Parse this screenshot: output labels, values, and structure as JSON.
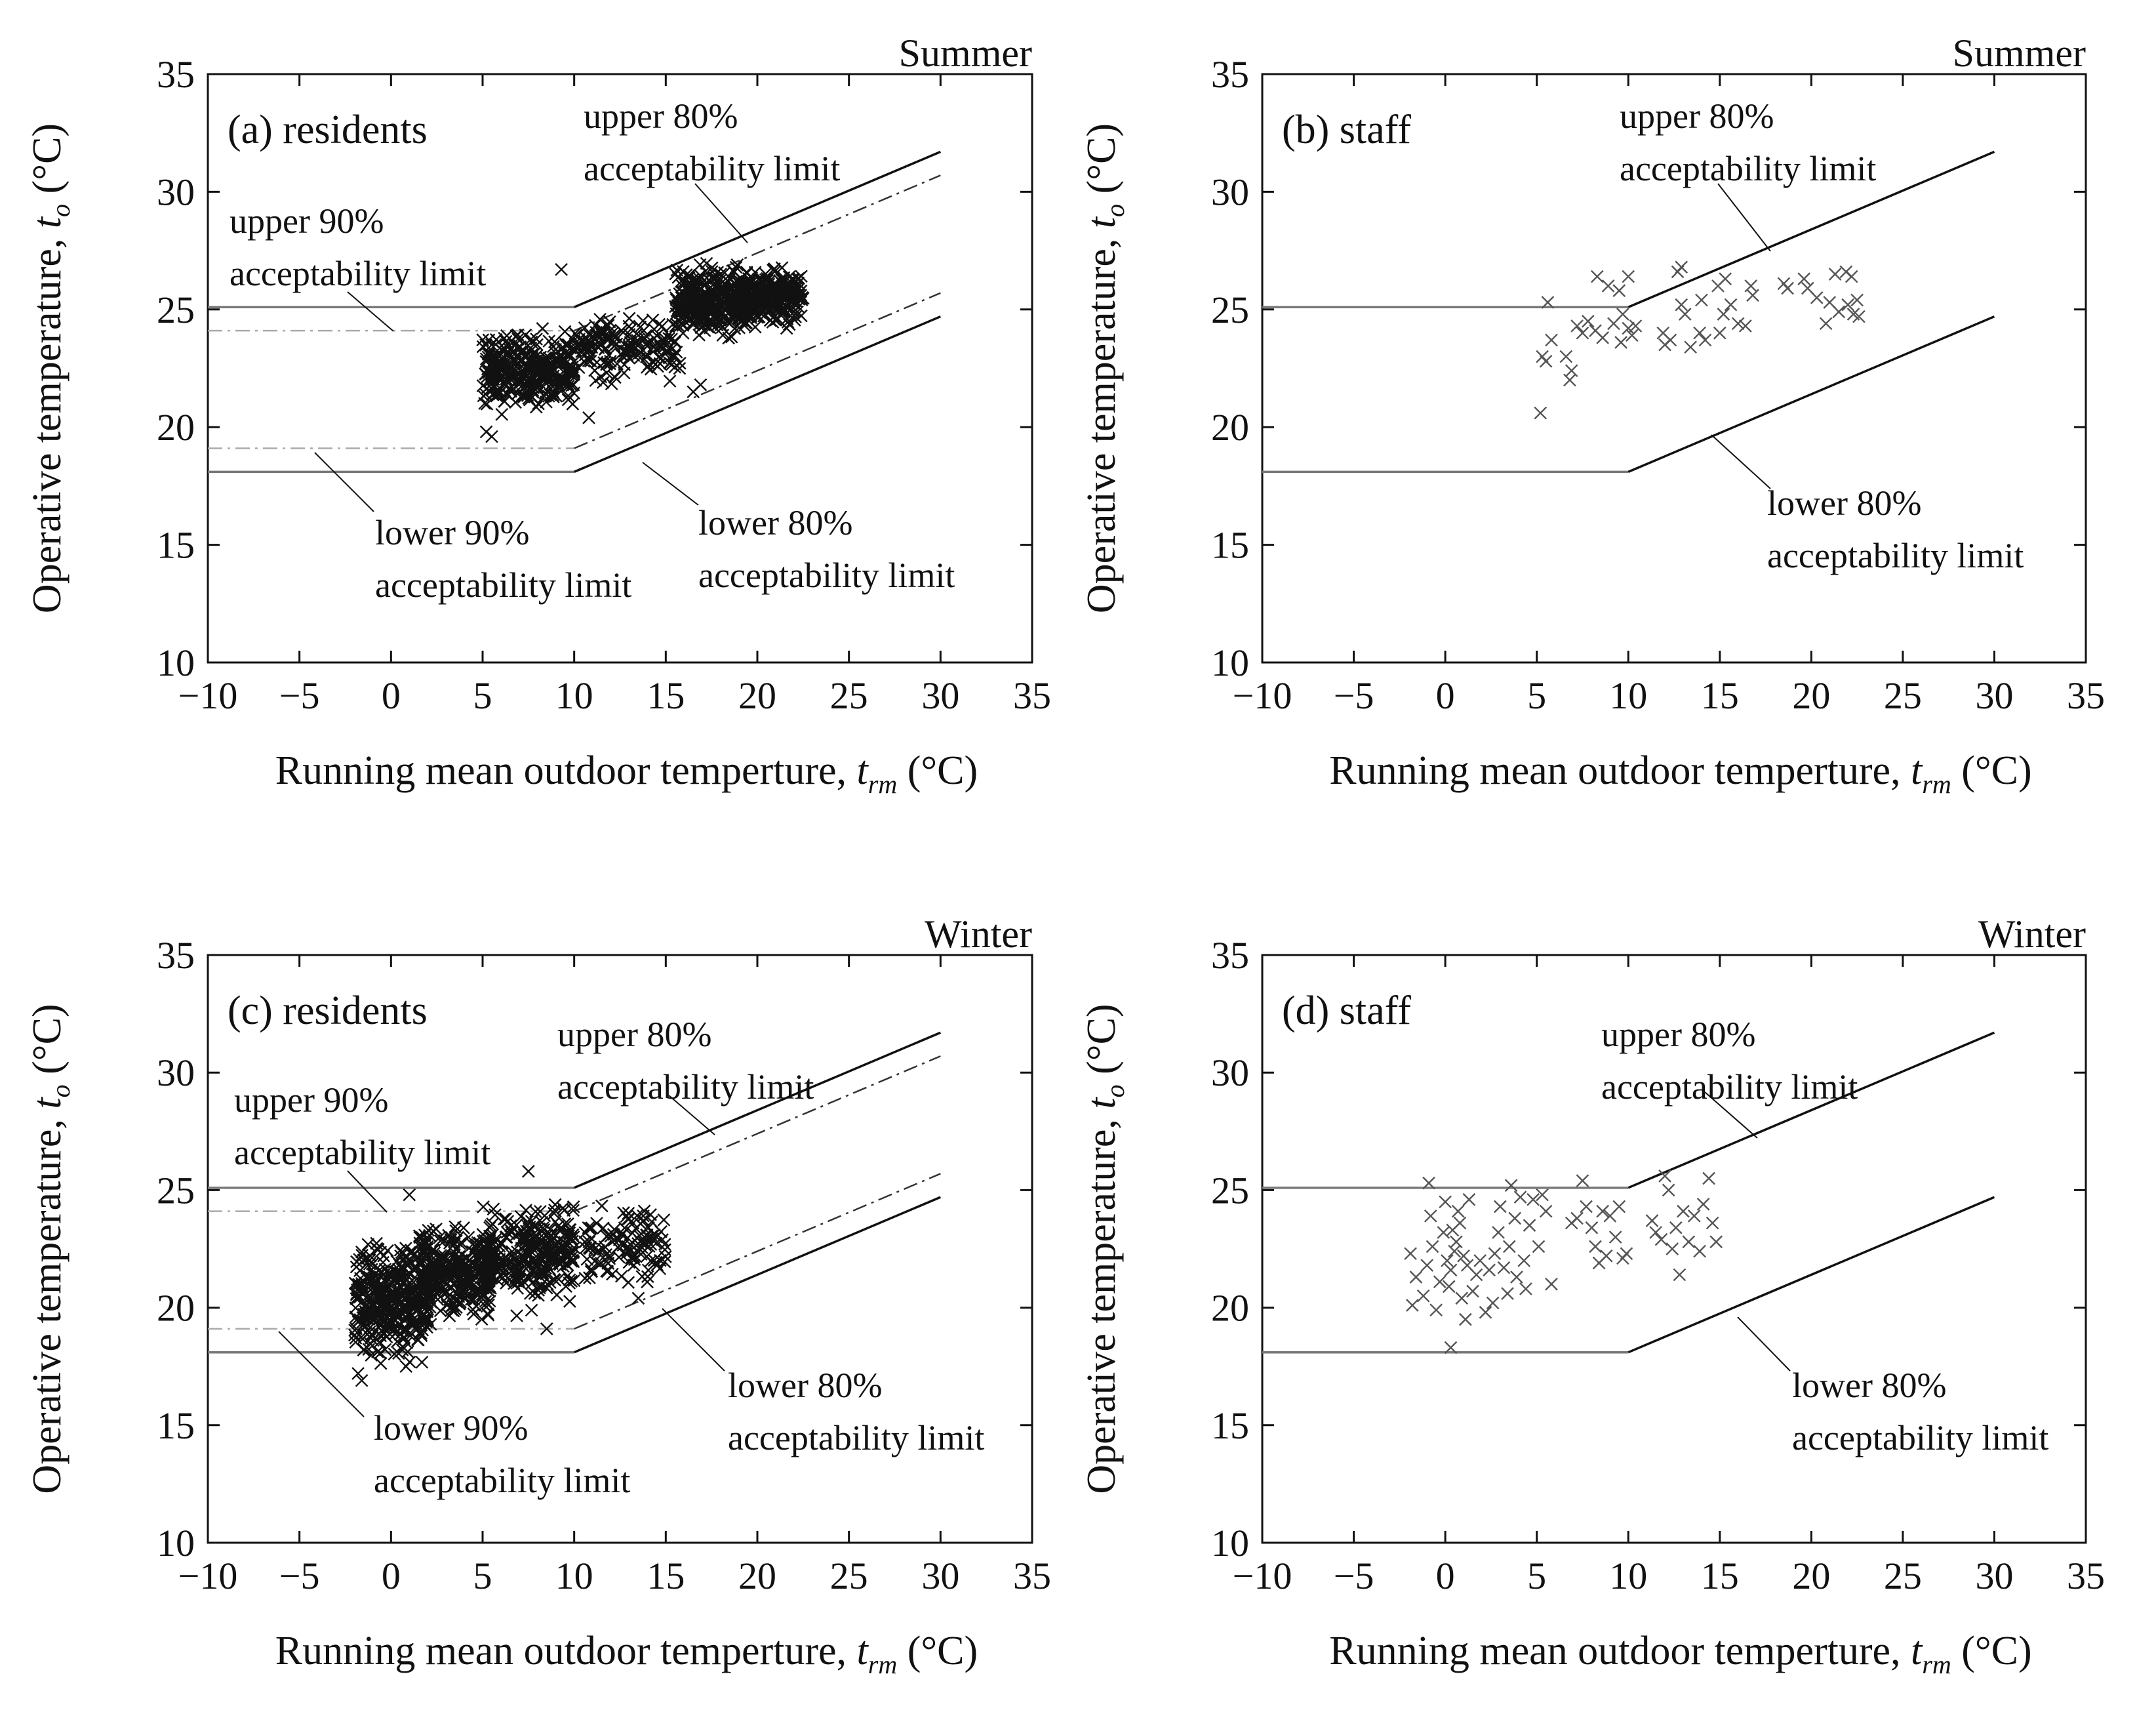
{
  "figure": {
    "tick_minus_sign": "−",
    "degree_unit": "(°C)"
  },
  "chart_data": [
    {
      "id": "a",
      "type": "scatter",
      "panel_label": "(a) residents",
      "season": "Summer",
      "xlabel": "Running mean outdoor temperture, t_rm (°C)",
      "xlabel_main": "Running mean outdoor temperture, ",
      "xlabel_symbol": "t",
      "xlabel_sub": "rm",
      "ylabel": "Operative temperature, t_o (°C)",
      "ylabel_main": "Operative temperature, ",
      "ylabel_symbol": "t",
      "ylabel_sub": "o",
      "xlim": [
        -10,
        35
      ],
      "ylim": [
        10,
        35
      ],
      "xticks": [
        -10,
        -5,
        0,
        5,
        10,
        15,
        20,
        25,
        30,
        35
      ],
      "yticks": [
        10,
        15,
        20,
        25,
        30,
        35
      ],
      "limits": {
        "upper80": [
          [
            -10,
            25.1
          ],
          [
            10,
            25.1
          ],
          [
            30,
            31.7
          ]
        ],
        "lower80": [
          [
            -10,
            18.1
          ],
          [
            10,
            18.1
          ],
          [
            30,
            24.7
          ]
        ],
        "upper90": [
          [
            -10,
            24.1
          ],
          [
            10,
            24.1
          ],
          [
            30,
            30.7
          ]
        ],
        "lower90": [
          [
            -10,
            19.1
          ],
          [
            10,
            19.1
          ],
          [
            30,
            25.7
          ]
        ]
      },
      "show_90": true,
      "annotations": [
        {
          "lines": [
            "upper 80%",
            "acceptability limit"
          ]
        },
        {
          "lines": [
            "upper 90%",
            "acceptability limit"
          ]
        },
        {
          "lines": [
            "lower 90%",
            "acceptability limit"
          ]
        },
        {
          "lines": [
            "lower 80%",
            "acceptability limit"
          ]
        }
      ],
      "clusters": [
        {
          "x": [
            5,
            10
          ],
          "y": [
            20.3,
            24.6
          ],
          "n": 340
        },
        {
          "x": [
            10,
            16
          ],
          "y": [
            21.5,
            25.3
          ],
          "n": 170
        },
        {
          "x": [
            15.5,
            19.5
          ],
          "y": [
            23.5,
            27.2
          ],
          "n": 340
        },
        {
          "x": [
            19,
            22.5
          ],
          "y": [
            24.0,
            27.1
          ],
          "n": 260
        }
      ],
      "points": [
        [
          9.3,
          26.7
        ],
        [
          5.2,
          19.8
        ],
        [
          5.5,
          19.6
        ],
        [
          10.8,
          20.4
        ],
        [
          16.5,
          21.5
        ],
        [
          16.9,
          21.8
        ],
        [
          21.6,
          24.2
        ]
      ],
      "marker_color": "#111111"
    },
    {
      "id": "b",
      "type": "scatter",
      "panel_label": "(b) staff",
      "season": "Summer",
      "xlabel": "Running mean outdoor temperture, t_rm (°C)",
      "xlabel_main": "Running mean outdoor temperture, ",
      "xlabel_symbol": "t",
      "xlabel_sub": "rm",
      "ylabel": "Operative temperature, t_o (°C)",
      "ylabel_main": "Operative temperature, ",
      "ylabel_symbol": "t",
      "ylabel_sub": "o",
      "xlim": [
        -10,
        35
      ],
      "ylim": [
        10,
        35
      ],
      "xticks": [
        -10,
        -5,
        0,
        5,
        10,
        15,
        20,
        25,
        30,
        35
      ],
      "yticks": [
        10,
        15,
        20,
        25,
        30,
        35
      ],
      "limits": {
        "upper80": [
          [
            -10,
            25.1
          ],
          [
            10,
            25.1
          ],
          [
            30,
            31.7
          ]
        ],
        "lower80": [
          [
            -10,
            18.1
          ],
          [
            10,
            18.1
          ],
          [
            30,
            24.7
          ]
        ]
      },
      "show_90": false,
      "annotations": [
        {
          "lines": [
            "upper 80%",
            "acceptability limit"
          ]
        },
        {
          "lines": [
            "lower 80%",
            "acceptability limit"
          ]
        }
      ],
      "points": [
        [
          5.2,
          20.6
        ],
        [
          5.3,
          23.0
        ],
        [
          5.5,
          22.8
        ],
        [
          5.6,
          25.3
        ],
        [
          5.8,
          23.7
        ],
        [
          6.6,
          23.0
        ],
        [
          6.8,
          22.0
        ],
        [
          6.9,
          22.4
        ],
        [
          7.2,
          24.3
        ],
        [
          7.5,
          24.0
        ],
        [
          7.8,
          24.5
        ],
        [
          8.2,
          24.1
        ],
        [
          8.3,
          26.4
        ],
        [
          8.6,
          23.8
        ],
        [
          8.9,
          26.0
        ],
        [
          9.2,
          24.4
        ],
        [
          9.5,
          25.8
        ],
        [
          9.6,
          23.6
        ],
        [
          9.7,
          24.8
        ],
        [
          10.0,
          26.4
        ],
        [
          10.0,
          24.2
        ],
        [
          10.2,
          23.9
        ],
        [
          10.4,
          24.3
        ],
        [
          11.9,
          24.0
        ],
        [
          12.0,
          23.5
        ],
        [
          12.3,
          23.7
        ],
        [
          12.7,
          26.6
        ],
        [
          12.9,
          26.8
        ],
        [
          12.9,
          25.2
        ],
        [
          13.1,
          24.8
        ],
        [
          13.4,
          23.4
        ],
        [
          13.9,
          24.0
        ],
        [
          14.0,
          25.4
        ],
        [
          14.2,
          23.7
        ],
        [
          14.9,
          26.0
        ],
        [
          15.0,
          24.0
        ],
        [
          15.2,
          24.8
        ],
        [
          15.3,
          26.3
        ],
        [
          15.6,
          25.2
        ],
        [
          16.0,
          24.4
        ],
        [
          16.4,
          24.3
        ],
        [
          16.7,
          26.0
        ],
        [
          16.8,
          25.6
        ],
        [
          18.5,
          26.1
        ],
        [
          18.7,
          25.9
        ],
        [
          19.6,
          26.3
        ],
        [
          19.8,
          25.9
        ],
        [
          20.3,
          25.5
        ],
        [
          20.8,
          24.4
        ],
        [
          21.0,
          25.3
        ],
        [
          21.3,
          26.5
        ],
        [
          21.5,
          24.9
        ],
        [
          21.9,
          26.6
        ],
        [
          22.0,
          25.2
        ],
        [
          22.2,
          26.4
        ],
        [
          22.3,
          24.8
        ],
        [
          22.6,
          24.7
        ],
        [
          22.5,
          25.4
        ]
      ],
      "marker_color": "#555555"
    },
    {
      "id": "c",
      "type": "scatter",
      "panel_label": "(c) residents",
      "season": "Winter",
      "xlabel": "Running mean outdoor temperture, t_rm (°C)",
      "xlabel_main": "Running mean outdoor temperture, ",
      "xlabel_symbol": "t",
      "xlabel_sub": "rm",
      "ylabel": "Operative temperature, t_o (°C)",
      "ylabel_main": "Operative temperature, ",
      "ylabel_symbol": "t",
      "ylabel_sub": "o",
      "xlim": [
        -10,
        35
      ],
      "ylim": [
        10,
        35
      ],
      "xticks": [
        -10,
        -5,
        0,
        5,
        10,
        15,
        20,
        25,
        30,
        35
      ],
      "yticks": [
        10,
        15,
        20,
        25,
        30,
        35
      ],
      "limits": {
        "upper80": [
          [
            -10,
            25.1
          ],
          [
            10,
            25.1
          ],
          [
            30,
            31.7
          ]
        ],
        "lower80": [
          [
            -10,
            18.1
          ],
          [
            10,
            18.1
          ],
          [
            30,
            24.7
          ]
        ],
        "upper90": [
          [
            -10,
            24.1
          ],
          [
            10,
            24.1
          ],
          [
            30,
            30.7
          ]
        ],
        "lower90": [
          [
            -10,
            19.1
          ],
          [
            10,
            19.1
          ],
          [
            30,
            25.7
          ]
        ]
      },
      "show_90": true,
      "annotations": [
        {
          "lines": [
            "upper 80%",
            "acceptability limit"
          ]
        },
        {
          "lines": [
            "upper 90%",
            "acceptability limit"
          ]
        },
        {
          "lines": [
            "lower 90%",
            "acceptability limit"
          ]
        },
        {
          "lines": [
            "lower 80%",
            "acceptability limit"
          ]
        }
      ],
      "clusters": [
        {
          "x": [
            -2,
            2
          ],
          "y": [
            17.0,
            23.5
          ],
          "n": 380
        },
        {
          "x": [
            1.5,
            5.5
          ],
          "y": [
            19.0,
            24.0
          ],
          "n": 320
        },
        {
          "x": [
            5,
            10
          ],
          "y": [
            19.5,
            25.0
          ],
          "n": 300
        },
        {
          "x": [
            10.5,
            15
          ],
          "y": [
            20.5,
            24.8
          ],
          "n": 120
        }
      ],
      "points": [
        [
          -1.8,
          17.2
        ],
        [
          -1.6,
          16.9
        ],
        [
          1.0,
          24.8
        ],
        [
          7.5,
          25.8
        ],
        [
          8.5,
          19.1
        ],
        [
          13.5,
          20.4
        ]
      ],
      "marker_color": "#111111"
    },
    {
      "id": "d",
      "type": "scatter",
      "panel_label": "(d) staff",
      "season": "Winter",
      "xlabel": "Running mean outdoor temperture, t_rm (°C)",
      "xlabel_main": "Running mean outdoor temperture, ",
      "xlabel_symbol": "t",
      "xlabel_sub": "rm",
      "ylabel": "Operative temperature, t_o (°C)",
      "ylabel_main": "Operative temperature, ",
      "ylabel_symbol": "t",
      "ylabel_sub": "o",
      "xlim": [
        -10,
        35
      ],
      "ylim": [
        10,
        35
      ],
      "xticks": [
        -10,
        -5,
        0,
        5,
        10,
        15,
        20,
        25,
        30,
        35
      ],
      "yticks": [
        10,
        15,
        20,
        25,
        30,
        35
      ],
      "limits": {
        "upper80": [
          [
            -10,
            25.1
          ],
          [
            10,
            25.1
          ],
          [
            30,
            31.7
          ]
        ],
        "lower80": [
          [
            -10,
            18.1
          ],
          [
            10,
            18.1
          ],
          [
            30,
            24.7
          ]
        ]
      },
      "show_90": false,
      "annotations": [
        {
          "lines": [
            "upper 80%",
            "acceptability limit"
          ]
        },
        {
          "lines": [
            "lower 80%",
            "acceptability limit"
          ]
        }
      ],
      "points": [
        [
          -1.9,
          22.3
        ],
        [
          -1.8,
          20.1
        ],
        [
          -1.6,
          21.3
        ],
        [
          -1.2,
          20.5
        ],
        [
          -1.0,
          21.8
        ],
        [
          -0.9,
          25.3
        ],
        [
          -0.8,
          23.9
        ],
        [
          -0.7,
          22.6
        ],
        [
          -0.5,
          19.9
        ],
        [
          -0.3,
          21.1
        ],
        [
          -0.1,
          23.2
        ],
        [
          0.0,
          24.5
        ],
        [
          0.1,
          22.0
        ],
        [
          0.2,
          20.9
        ],
        [
          0.3,
          21.6
        ],
        [
          0.3,
          18.3
        ],
        [
          0.4,
          23.3
        ],
        [
          0.5,
          22.4
        ],
        [
          0.6,
          22.8
        ],
        [
          0.7,
          24.1
        ],
        [
          0.8,
          23.6
        ],
        [
          0.9,
          20.4
        ],
        [
          1.0,
          22.2
        ],
        [
          1.1,
          19.5
        ],
        [
          1.2,
          21.8
        ],
        [
          1.3,
          24.6
        ],
        [
          1.5,
          20.7
        ],
        [
          1.7,
          21.4
        ],
        [
          1.9,
          22.0
        ],
        [
          2.2,
          19.8
        ],
        [
          2.4,
          21.6
        ],
        [
          2.6,
          20.2
        ],
        [
          2.7,
          22.3
        ],
        [
          2.9,
          23.2
        ],
        [
          3.0,
          24.3
        ],
        [
          3.2,
          21.7
        ],
        [
          3.4,
          20.6
        ],
        [
          3.5,
          22.6
        ],
        [
          3.6,
          25.2
        ],
        [
          3.8,
          23.8
        ],
        [
          3.9,
          21.3
        ],
        [
          4.1,
          24.7
        ],
        [
          4.3,
          22.0
        ],
        [
          4.4,
          20.8
        ],
        [
          4.6,
          23.5
        ],
        [
          4.8,
          24.6
        ],
        [
          5.1,
          22.6
        ],
        [
          5.3,
          24.8
        ],
        [
          5.5,
          24.1
        ],
        [
          5.8,
          21.0
        ],
        [
          6.9,
          23.6
        ],
        [
          7.2,
          23.8
        ],
        [
          7.5,
          25.4
        ],
        [
          7.7,
          24.3
        ],
        [
          8.0,
          23.4
        ],
        [
          8.2,
          22.6
        ],
        [
          8.4,
          21.9
        ],
        [
          8.6,
          24.1
        ],
        [
          8.8,
          22.2
        ],
        [
          9.0,
          23.9
        ],
        [
          9.3,
          23.0
        ],
        [
          9.5,
          24.3
        ],
        [
          9.7,
          22.1
        ],
        [
          9.9,
          22.3
        ],
        [
          11.3,
          23.7
        ],
        [
          11.5,
          23.2
        ],
        [
          11.8,
          22.9
        ],
        [
          12.0,
          25.6
        ],
        [
          12.2,
          25.0
        ],
        [
          12.4,
          22.5
        ],
        [
          12.6,
          23.4
        ],
        [
          12.8,
          21.4
        ],
        [
          13.0,
          24.1
        ],
        [
          13.3,
          22.8
        ],
        [
          13.6,
          23.9
        ],
        [
          13.9,
          22.4
        ],
        [
          14.1,
          24.4
        ],
        [
          14.4,
          25.5
        ],
        [
          14.6,
          23.6
        ],
        [
          14.8,
          22.8
        ]
      ],
      "marker_color": "#555555"
    }
  ]
}
